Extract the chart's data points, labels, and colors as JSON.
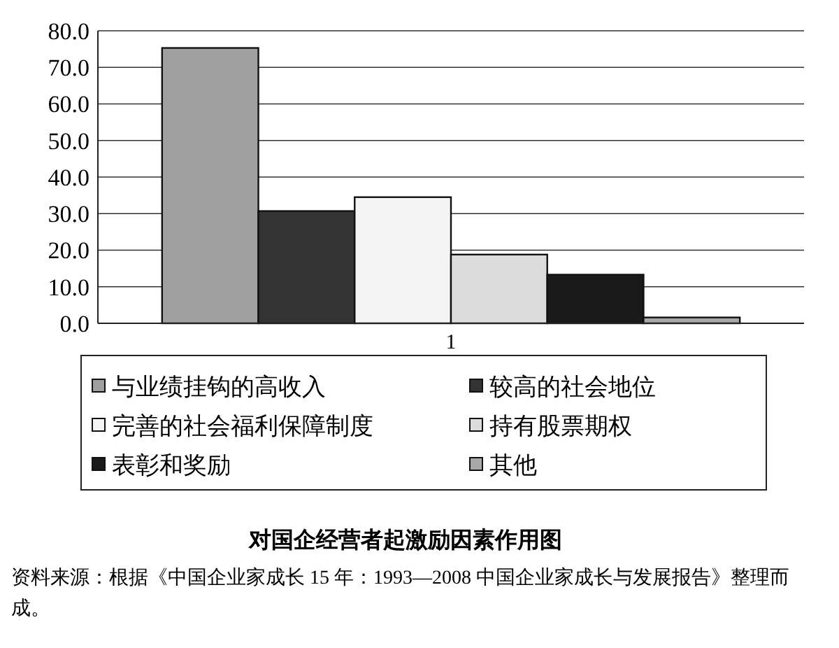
{
  "chart_data": {
    "type": "bar",
    "title": "对国企经营者起激励因素作用图",
    "categories": [
      "1"
    ],
    "series": [
      {
        "name": "与业绩挂钩的高收入",
        "color": "#a0a0a0",
        "values": [
          75.3
        ]
      },
      {
        "name": "较高的社会地位",
        "color": "#333333",
        "values": [
          30.7
        ]
      },
      {
        "name": "完善的社会福利保障制度",
        "color": "#f4f4f4",
        "values": [
          34.5
        ]
      },
      {
        "name": "持有股票期权",
        "color": "#dcdcdc",
        "values": [
          18.8
        ]
      },
      {
        "name": "表彰和奖励",
        "color": "#1a1a1a",
        "values": [
          13.3
        ]
      },
      {
        "name": "其他",
        "color": "#a8a8a8",
        "values": [
          1.6
        ]
      }
    ],
    "ylim": [
      0,
      80
    ],
    "yticks": [
      {
        "value": 0,
        "label": "0.0"
      },
      {
        "value": 10,
        "label": "10.0"
      },
      {
        "value": 20,
        "label": "20.0"
      },
      {
        "value": 30,
        "label": "30.0"
      },
      {
        "value": 40,
        "label": "40.0"
      },
      {
        "value": 50,
        "label": "50.0"
      },
      {
        "value": 60,
        "label": "60.0"
      },
      {
        "value": 70,
        "label": "70.0"
      },
      {
        "value": 80,
        "label": "80.0"
      }
    ],
    "grid": "y",
    "legend": "bottom",
    "annotations": [
      "资料来源：根据《中国企业家成长 15 年：1993—2008 中国企业家成长与发展报告》整理而成。"
    ]
  }
}
